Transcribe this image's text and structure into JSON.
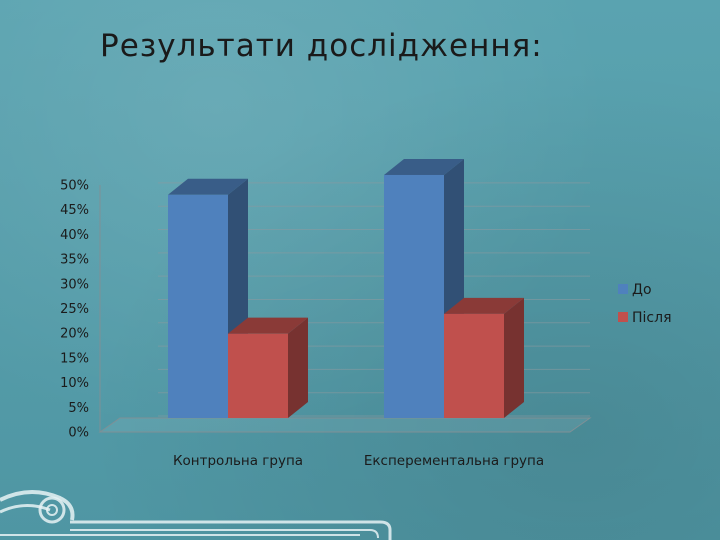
{
  "title": "Результати дослідження:",
  "chart_data": {
    "type": "bar",
    "categories": [
      "Контрольна група",
      "Експерементальна група"
    ],
    "series": [
      {
        "name": "До",
        "values": [
          45,
          49
        ],
        "color": "#4f81bd"
      },
      {
        "name": "Після",
        "values": [
          17,
          21
        ],
        "color": "#c0504d"
      }
    ],
    "y_ticks": [
      "0%",
      "5%",
      "10%",
      "15%",
      "20%",
      "25%",
      "30%",
      "35%",
      "40%",
      "45%",
      "50%"
    ],
    "ylim": [
      0,
      50
    ],
    "legend_position": "right",
    "grid": true
  }
}
